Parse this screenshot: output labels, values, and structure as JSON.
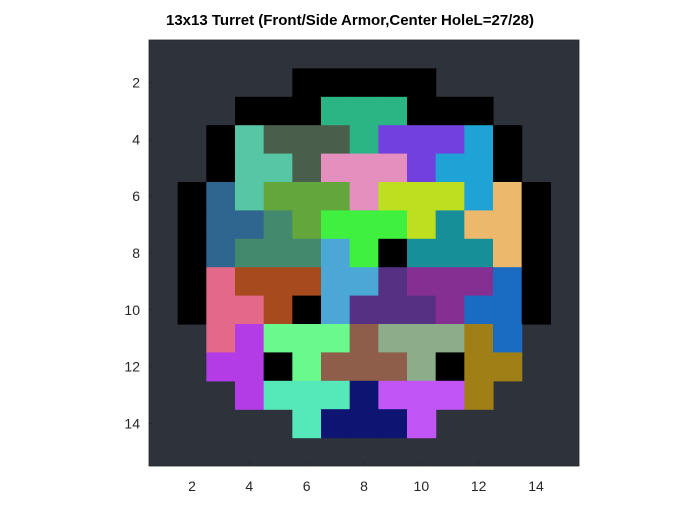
{
  "title": "13x13 Turret (Front/Side Armor,Center HoleL=27/28)",
  "axes": {
    "x_ticks": [
      "2",
      "4",
      "6",
      "8",
      "10",
      "12",
      "14"
    ],
    "y_ticks": [
      "2",
      "4",
      "6",
      "8",
      "10",
      "12",
      "14"
    ],
    "xlim": [
      0.5,
      15.5
    ],
    "ylim": [
      0.5,
      15.5
    ],
    "y_direction": "reversed",
    "background": "#2d323b",
    "grid": false
  },
  "colors": {
    "armor": "#000000",
    "pieces": [
      "#2bb484",
      "#495f4b",
      "#57c6a4",
      "#7340e0",
      "#1fa2d5",
      "#e48fbe",
      "#63a73c",
      "#bedf1f",
      "#2e6690",
      "#ebb86c",
      "#43896d",
      "#3ff03f",
      "#4ba7d6",
      "#168f98",
      "#a74a1e",
      "#e46988",
      "#563082",
      "#862f93",
      "#1a6cc2",
      "#b33ce6",
      "#6af98d",
      "#8e5e4a",
      "#8bad8a",
      "#a08016",
      "#c155f5",
      "#55e8b8",
      "#0d1471"
    ]
  },
  "chart_data": {
    "type": "heatmap",
    "title": "13x13 Turret (Front/Side Armor,Center HoleL=27/28)",
    "xlim": [
      0.5,
      15.5
    ],
    "ylim": [
      0.5,
      15.5
    ],
    "key": {
      "0": "background",
      "-1": "armor / center hole (black)",
      "1..27": "polyomino piece index (see colors.pieces)"
    },
    "grid": [
      [
        0,
        0,
        0,
        0,
        0,
        0,
        0,
        0,
        0,
        0,
        0,
        0,
        0,
        0,
        0
      ],
      [
        0,
        0,
        0,
        0,
        0,
        -1,
        -1,
        -1,
        -1,
        -1,
        0,
        0,
        0,
        0,
        0
      ],
      [
        0,
        0,
        0,
        -1,
        -1,
        -1,
        1,
        1,
        1,
        -1,
        -1,
        -1,
        0,
        0,
        0
      ],
      [
        0,
        0,
        -1,
        3,
        2,
        2,
        2,
        1,
        4,
        4,
        4,
        5,
        -1,
        0,
        0
      ],
      [
        0,
        0,
        -1,
        3,
        3,
        2,
        6,
        6,
        6,
        4,
        5,
        5,
        -1,
        0,
        0
      ],
      [
        0,
        -1,
        9,
        3,
        7,
        7,
        7,
        6,
        8,
        8,
        8,
        5,
        10,
        -1,
        0
      ],
      [
        0,
        -1,
        9,
        9,
        11,
        7,
        12,
        12,
        12,
        8,
        14,
        10,
        10,
        -1,
        0
      ],
      [
        0,
        -1,
        9,
        11,
        11,
        11,
        13,
        12,
        -1,
        14,
        14,
        14,
        10,
        -1,
        0
      ],
      [
        0,
        -1,
        16,
        15,
        15,
        15,
        13,
        13,
        17,
        18,
        18,
        18,
        19,
        -1,
        0
      ],
      [
        0,
        -1,
        16,
        16,
        15,
        -1,
        13,
        17,
        17,
        17,
        18,
        19,
        19,
        -1,
        0
      ],
      [
        0,
        0,
        16,
        20,
        21,
        21,
        21,
        22,
        23,
        23,
        23,
        24,
        19,
        0,
        0
      ],
      [
        0,
        0,
        20,
        20,
        -1,
        21,
        22,
        22,
        22,
        23,
        -1,
        24,
        24,
        0,
        0
      ],
      [
        0,
        0,
        0,
        20,
        26,
        26,
        26,
        27,
        25,
        25,
        25,
        24,
        0,
        0,
        0
      ],
      [
        0,
        0,
        0,
        0,
        0,
        26,
        27,
        27,
        27,
        25,
        0,
        0,
        0,
        0,
        0
      ],
      [
        0,
        0,
        0,
        0,
        0,
        0,
        0,
        0,
        0,
        0,
        0,
        0,
        0,
        0,
        0
      ]
    ]
  }
}
